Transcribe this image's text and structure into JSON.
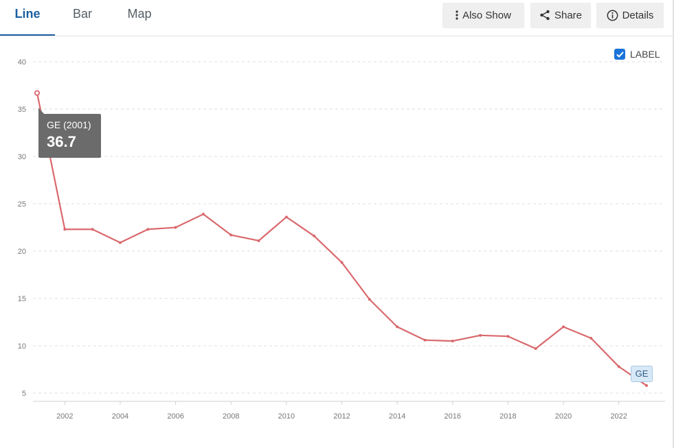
{
  "tabs": [
    {
      "label": "Line",
      "active": true
    },
    {
      "label": "Bar",
      "active": false
    },
    {
      "label": "Map",
      "active": false
    }
  ],
  "toolbar": {
    "also_show_label": "Also Show",
    "share_label": "Share",
    "details_label": "Details"
  },
  "legend_toggle": {
    "label": "LABEL",
    "checked": true
  },
  "tooltip": {
    "label": "GE (2001)",
    "value": "36.7"
  },
  "end_label": "GE",
  "colors": {
    "series": "#d9686c",
    "accent": "#1a5fa0",
    "checkbox": "#1a73d9"
  },
  "chart_data": {
    "type": "line",
    "title": "",
    "xlabel": "",
    "ylabel": "",
    "ylim": [
      5,
      40
    ],
    "xlim": [
      2001,
      2023
    ],
    "yticks": [
      5,
      10,
      15,
      20,
      25,
      30,
      35,
      40
    ],
    "xticks": [
      2002,
      2004,
      2006,
      2008,
      2010,
      2012,
      2014,
      2016,
      2018,
      2020,
      2022
    ],
    "grid": true,
    "series": [
      {
        "name": "GE",
        "x": [
          2001,
          2002,
          2003,
          2004,
          2005,
          2006,
          2007,
          2008,
          2009,
          2010,
          2011,
          2012,
          2013,
          2014,
          2015,
          2016,
          2017,
          2018,
          2019,
          2020,
          2021,
          2022,
          2023
        ],
        "values": [
          36.7,
          22.3,
          22.3,
          20.9,
          22.3,
          22.5,
          23.9,
          21.7,
          21.1,
          23.6,
          21.6,
          18.8,
          14.9,
          12.0,
          10.6,
          10.5,
          11.1,
          11.0,
          9.7,
          12.0,
          10.8,
          7.8,
          5.8
        ]
      }
    ]
  }
}
